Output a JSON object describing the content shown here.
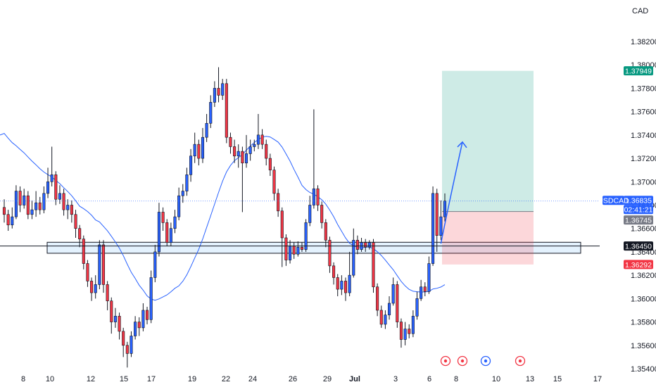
{
  "chart_data": {
    "type": "candlestick",
    "symbol": "USDCAD",
    "currency": "CAD",
    "y_ticks": [
      1.354,
      1.356,
      1.358,
      1.36,
      1.362,
      1.364,
      1.366,
      1.368,
      1.37,
      1.372,
      1.374,
      1.376,
      1.378,
      1.38,
      1.382
    ],
    "y_tick_labels": [
      "1.35400",
      "1.35600",
      "1.35800",
      "1.36000",
      "1.36200",
      "1.36400",
      "1.36600",
      "1.36800",
      "1.37000",
      "1.37200",
      "1.37400",
      "1.37600",
      "1.37800",
      "1.38000",
      "1.38200"
    ],
    "x_ticks": [
      "8",
      "10",
      "12",
      "15",
      "17",
      "19",
      "22",
      "24",
      "26",
      "29",
      "Jul",
      "3",
      "6",
      "8",
      "10",
      "13",
      "15",
      "17"
    ],
    "ylim": [
      1.354,
      1.3835
    ],
    "price_labels": [
      {
        "key": "target",
        "text": "1.37949",
        "value": 1.37949,
        "color": "#089981"
      },
      {
        "key": "current",
        "text": "1.36835",
        "value": 1.36835,
        "color": "#2962ff"
      },
      {
        "key": "timer",
        "text": "02:41:21",
        "value": 1.36835,
        "color": "#2962ff"
      },
      {
        "key": "entry",
        "text": "1.36745",
        "value": 1.36745,
        "color": "#787b86"
      },
      {
        "key": "support",
        "text": "1.36450",
        "value": 1.3645,
        "color": "#131722"
      },
      {
        "key": "stop",
        "text": "1.36292",
        "value": 1.36292,
        "color": "#f23645"
      }
    ],
    "symbol_label": "USDCAD",
    "support_zone": {
      "low": 1.364,
      "high": 1.3647
    },
    "position": {
      "entry": 1.36745,
      "target": 1.37949,
      "stop": 1.36292
    },
    "moving_average_color": "#2962ff",
    "candles": [
      [
        1.3678,
        1.3672,
        1.3685,
        1.3665
      ],
      [
        1.3672,
        1.3663,
        1.3676,
        1.3658
      ],
      [
        1.3663,
        1.367,
        1.3678,
        1.366
      ],
      [
        1.367,
        1.3692,
        1.3697,
        1.3668
      ],
      [
        1.3692,
        1.368,
        1.3696,
        1.3674
      ],
      [
        1.368,
        1.3688,
        1.3694,
        1.3677
      ],
      [
        1.3688,
        1.3672,
        1.3692,
        1.3668
      ],
      [
        1.3672,
        1.3676,
        1.3684,
        1.3668
      ],
      [
        1.3676,
        1.3682,
        1.3692,
        1.367
      ],
      [
        1.3682,
        1.3676,
        1.3687,
        1.3672
      ],
      [
        1.3676,
        1.369,
        1.3696,
        1.3673
      ],
      [
        1.369,
        1.37,
        1.3712,
        1.3686
      ],
      [
        1.37,
        1.3706,
        1.373,
        1.3696
      ],
      [
        1.3706,
        1.3685,
        1.3709,
        1.368
      ],
      [
        1.3685,
        1.369,
        1.3697,
        1.3681
      ],
      [
        1.369,
        1.3676,
        1.3694,
        1.3671
      ],
      [
        1.3676,
        1.368,
        1.3685,
        1.3668
      ],
      [
        1.368,
        1.3672,
        1.3684,
        1.3665
      ],
      [
        1.3672,
        1.366,
        1.3676,
        1.3652
      ],
      [
        1.366,
        1.3651,
        1.3663,
        1.3644
      ],
      [
        1.3651,
        1.363,
        1.3654,
        1.3625
      ],
      [
        1.363,
        1.3615,
        1.3633,
        1.361
      ],
      [
        1.3615,
        1.3605,
        1.3618,
        1.3598
      ],
      [
        1.3605,
        1.3612,
        1.362,
        1.36
      ],
      [
        1.3612,
        1.3646,
        1.365,
        1.3608
      ],
      [
        1.3646,
        1.3612,
        1.365,
        1.3605
      ],
      [
        1.3612,
        1.3598,
        1.3615,
        1.359
      ],
      [
        1.3598,
        1.358,
        1.3601,
        1.357
      ],
      [
        1.358,
        1.3585,
        1.3592,
        1.3575
      ],
      [
        1.3585,
        1.3572,
        1.3588,
        1.3565
      ],
      [
        1.3572,
        1.356,
        1.3575,
        1.355
      ],
      [
        1.356,
        1.3553,
        1.3563,
        1.3541
      ],
      [
        1.3553,
        1.3568,
        1.3572,
        1.355
      ],
      [
        1.3568,
        1.358,
        1.3585,
        1.3565
      ],
      [
        1.358,
        1.3575,
        1.3584,
        1.3568
      ],
      [
        1.3575,
        1.359,
        1.3596,
        1.3572
      ],
      [
        1.359,
        1.3582,
        1.3593,
        1.3578
      ],
      [
        1.3582,
        1.3618,
        1.3624,
        1.3579
      ],
      [
        1.3618,
        1.364,
        1.3646,
        1.3614
      ],
      [
        1.364,
        1.3674,
        1.3682,
        1.3636
      ],
      [
        1.3674,
        1.3665,
        1.3678,
        1.3658
      ],
      [
        1.3665,
        1.3648,
        1.3668,
        1.3645
      ],
      [
        1.3648,
        1.366,
        1.3665,
        1.3645
      ],
      [
        1.366,
        1.367,
        1.3676,
        1.3656
      ],
      [
        1.367,
        1.3688,
        1.3695,
        1.3667
      ],
      [
        1.3688,
        1.3692,
        1.3698,
        1.3682
      ],
      [
        1.3692,
        1.3706,
        1.3712,
        1.3688
      ],
      [
        1.3706,
        1.3722,
        1.3728,
        1.37
      ],
      [
        1.3722,
        1.3732,
        1.3742,
        1.3716
      ],
      [
        1.3732,
        1.372,
        1.3736,
        1.3714
      ],
      [
        1.372,
        1.3738,
        1.3746,
        1.3716
      ],
      [
        1.3738,
        1.375,
        1.3758,
        1.3734
      ],
      [
        1.375,
        1.3768,
        1.3774,
        1.3746
      ],
      [
        1.3768,
        1.378,
        1.3786,
        1.3764
      ],
      [
        1.378,
        1.3774,
        1.3798,
        1.3768
      ],
      [
        1.3774,
        1.3784,
        1.3788,
        1.377
      ],
      [
        1.3784,
        1.3738,
        1.3788,
        1.3733
      ],
      [
        1.3738,
        1.373,
        1.3742,
        1.3724
      ],
      [
        1.373,
        1.3722,
        1.3736,
        1.3716
      ],
      [
        1.3722,
        1.3726,
        1.3732,
        1.3712
      ],
      [
        1.3726,
        1.3716,
        1.373,
        1.3674
      ],
      [
        1.3716,
        1.3724,
        1.374,
        1.3712
      ],
      [
        1.3724,
        1.373,
        1.3736,
        1.3718
      ],
      [
        1.373,
        1.3732,
        1.3736,
        1.3726
      ],
      [
        1.3732,
        1.374,
        1.3758,
        1.3728
      ],
      [
        1.374,
        1.3732,
        1.3745,
        1.3728
      ],
      [
        1.3732,
        1.372,
        1.3736,
        1.3714
      ],
      [
        1.372,
        1.371,
        1.3724,
        1.3705
      ],
      [
        1.371,
        1.369,
        1.3713,
        1.3684
      ],
      [
        1.369,
        1.3675,
        1.3694,
        1.367
      ],
      [
        1.3675,
        1.3652,
        1.3678,
        1.3627
      ],
      [
        1.3652,
        1.3633,
        1.3655,
        1.3628
      ],
      [
        1.3633,
        1.3645,
        1.365,
        1.363
      ],
      [
        1.3645,
        1.3638,
        1.3648,
        1.3634
      ],
      [
        1.3638,
        1.3644,
        1.3649,
        1.3636
      ],
      [
        1.3644,
        1.3642,
        1.3648,
        1.364
      ],
      [
        1.3642,
        1.3665,
        1.3668,
        1.364
      ],
      [
        1.3665,
        1.368,
        1.3688,
        1.3662
      ],
      [
        1.368,
        1.3694,
        1.3762,
        1.3677
      ],
      [
        1.3694,
        1.368,
        1.3697,
        1.3675
      ],
      [
        1.368,
        1.3665,
        1.3683,
        1.366
      ],
      [
        1.3665,
        1.365,
        1.3668,
        1.3644
      ],
      [
        1.365,
        1.3628,
        1.3653,
        1.3622
      ],
      [
        1.3628,
        1.3618,
        1.3631,
        1.3612
      ],
      [
        1.3618,
        1.3608,
        1.3621,
        1.3602
      ],
      [
        1.3608,
        1.3615,
        1.362,
        1.3603
      ],
      [
        1.3615,
        1.3605,
        1.3618,
        1.3598
      ],
      [
        1.3605,
        1.362,
        1.364,
        1.3602
      ],
      [
        1.362,
        1.365,
        1.366,
        1.3618
      ],
      [
        1.365,
        1.3642,
        1.3654,
        1.3638
      ],
      [
        1.3642,
        1.3648,
        1.3652,
        1.364
      ],
      [
        1.3648,
        1.3644,
        1.3651,
        1.364
      ],
      [
        1.3644,
        1.3648,
        1.365,
        1.3642
      ],
      [
        1.3648,
        1.361,
        1.3651,
        1.3605
      ],
      [
        1.361,
        1.359,
        1.3613,
        1.3585
      ],
      [
        1.359,
        1.3578,
        1.3594,
        1.3575
      ],
      [
        1.3578,
        1.3586,
        1.359,
        1.3574
      ],
      [
        1.3586,
        1.3596,
        1.3602,
        1.3582
      ],
      [
        1.3596,
        1.3612,
        1.3618,
        1.3594
      ],
      [
        1.3612,
        1.358,
        1.3615,
        1.3575
      ],
      [
        1.358,
        1.3565,
        1.3583,
        1.3558
      ],
      [
        1.3565,
        1.3574,
        1.358,
        1.356
      ],
      [
        1.3574,
        1.357,
        1.3578,
        1.3566
      ],
      [
        1.357,
        1.3585,
        1.359,
        1.3567
      ],
      [
        1.3585,
        1.36,
        1.3606,
        1.3582
      ],
      [
        1.36,
        1.361,
        1.3616,
        1.3598
      ],
      [
        1.361,
        1.3606,
        1.3614,
        1.3602
      ],
      [
        1.3606,
        1.363,
        1.3636,
        1.3604
      ],
      [
        1.363,
        1.369,
        1.3696,
        1.3628
      ],
      [
        1.369,
        1.3654,
        1.3694,
        1.364
      ],
      [
        1.3654,
        1.367,
        1.3684,
        1.365
      ],
      [
        1.367,
        1.36835,
        1.369,
        1.3666
      ]
    ]
  }
}
